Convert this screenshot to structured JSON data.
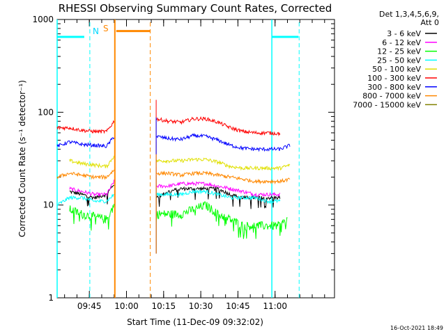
{
  "chart_data": {
    "type": "line",
    "title": "RHESSI Observing Summary Count Rates, Corrected",
    "xlabel": "Start Time (11-Dec-09 09:32:02)",
    "ylabel": "Corrected Count Rate (s⁻¹ detector⁻¹)",
    "yscale": "log",
    "ylim": [
      1,
      1000
    ],
    "xlim_minutes": [
      0,
      112
    ],
    "x_ticks": [
      {
        "label": "09:45",
        "minute": 13
      },
      {
        "label": "10:00",
        "minute": 28
      },
      {
        "label": "10:15",
        "minute": 43
      },
      {
        "label": "10:30",
        "minute": 58
      },
      {
        "label": "10:45",
        "minute": 73
      },
      {
        "label": "11:00",
        "minute": 88
      }
    ],
    "y_ticks": [
      {
        "label": "1",
        "value": 1
      },
      {
        "label": "10",
        "value": 10
      },
      {
        "label": "100",
        "value": 100
      },
      {
        "label": "1000",
        "value": 1000
      }
    ],
    "legend_header": [
      "Det 1,3,4,5,6,9,",
      "Att 0"
    ],
    "legend_position": "right",
    "footer": "16-Oct-2021 18:49",
    "gaps_minutes": [
      [
        23.3,
        39.3
      ]
    ],
    "series": [
      {
        "name": "3 - 6 keV",
        "color": "#000000",
        "seg1": [
          [
            5,
            14
          ],
          [
            10,
            13
          ],
          [
            15,
            12
          ],
          [
            20,
            13
          ],
          [
            23,
            17
          ]
        ],
        "seg2": [
          [
            40,
            12
          ],
          [
            45,
            14
          ],
          [
            50,
            15
          ],
          [
            55,
            15
          ],
          [
            60,
            15
          ],
          [
            65,
            15
          ],
          [
            70,
            13
          ],
          [
            75,
            12
          ],
          [
            80,
            12
          ],
          [
            85,
            12
          ],
          [
            90,
            12
          ]
        ]
      },
      {
        "name": "6 - 12 keV",
        "color": "#ff00ff",
        "seg1": [
          [
            5,
            15
          ],
          [
            10,
            14
          ],
          [
            15,
            13
          ],
          [
            20,
            13
          ],
          [
            23,
            18
          ]
        ],
        "seg2": [
          [
            40,
            16
          ],
          [
            45,
            16
          ],
          [
            50,
            17
          ],
          [
            55,
            17
          ],
          [
            60,
            17
          ],
          [
            65,
            16
          ],
          [
            70,
            15
          ],
          [
            75,
            14
          ],
          [
            80,
            13
          ],
          [
            85,
            13
          ],
          [
            90,
            13
          ]
        ]
      },
      {
        "name": "12 - 25 keV",
        "color": "#00ff00",
        "seg1": [
          [
            5,
            9
          ],
          [
            10,
            8
          ],
          [
            15,
            7.5
          ],
          [
            20,
            7
          ],
          [
            23,
            10
          ]
        ],
        "seg2": [
          [
            40,
            8
          ],
          [
            45,
            8
          ],
          [
            50,
            8
          ],
          [
            55,
            9
          ],
          [
            60,
            10
          ],
          [
            65,
            8
          ],
          [
            70,
            7
          ],
          [
            75,
            6
          ],
          [
            80,
            6
          ],
          [
            85,
            6
          ],
          [
            90,
            6
          ],
          [
            93,
            7
          ]
        ]
      },
      {
        "name": "25 - 50 keV",
        "color": "#00ffff",
        "seg1": [
          [
            0,
            10
          ],
          [
            5,
            12
          ],
          [
            10,
            12
          ],
          [
            15,
            11
          ],
          [
            20,
            11
          ],
          [
            23,
            13
          ]
        ],
        "seg2": [
          [
            40,
            13
          ],
          [
            45,
            13
          ],
          [
            50,
            13
          ],
          [
            55,
            14
          ],
          [
            60,
            14
          ],
          [
            65,
            13
          ],
          [
            70,
            12
          ],
          [
            75,
            12
          ],
          [
            80,
            12
          ],
          [
            85,
            11
          ],
          [
            90,
            11
          ]
        ]
      },
      {
        "name": "50 - 100 keV",
        "color": "#e0e000",
        "seg1": [
          [
            5,
            30
          ],
          [
            10,
            28
          ],
          [
            15,
            27
          ],
          [
            20,
            26
          ],
          [
            23,
            34
          ]
        ],
        "seg2": [
          [
            40,
            30
          ],
          [
            45,
            30
          ],
          [
            50,
            30
          ],
          [
            55,
            31
          ],
          [
            60,
            31
          ],
          [
            65,
            29
          ],
          [
            70,
            26
          ],
          [
            75,
            25
          ],
          [
            80,
            25
          ],
          [
            85,
            25
          ],
          [
            90,
            25
          ],
          [
            94,
            27
          ]
        ]
      },
      {
        "name": "100 - 300 keV",
        "color": "#ff0000",
        "seg1": [
          [
            0,
            68
          ],
          [
            5,
            68
          ],
          [
            10,
            64
          ],
          [
            15,
            62
          ],
          [
            20,
            62
          ],
          [
            23,
            80
          ]
        ],
        "seg2": [
          [
            40,
            85
          ],
          [
            45,
            80
          ],
          [
            50,
            78
          ],
          [
            55,
            85
          ],
          [
            60,
            85
          ],
          [
            65,
            78
          ],
          [
            70,
            68
          ],
          [
            75,
            62
          ],
          [
            80,
            60
          ],
          [
            85,
            60
          ],
          [
            90,
            59
          ]
        ]
      },
      {
        "name": "300 - 800 keV",
        "color": "#0000ff",
        "seg1": [
          [
            0,
            43
          ],
          [
            5,
            48
          ],
          [
            10,
            45
          ],
          [
            15,
            44
          ],
          [
            20,
            43
          ],
          [
            23,
            55
          ]
        ],
        "seg2": [
          [
            40,
            55
          ],
          [
            45,
            52
          ],
          [
            50,
            51
          ],
          [
            55,
            56
          ],
          [
            60,
            55
          ],
          [
            65,
            50
          ],
          [
            70,
            44
          ],
          [
            75,
            41
          ],
          [
            80,
            40
          ],
          [
            85,
            40
          ],
          [
            90,
            40
          ],
          [
            94,
            44
          ]
        ]
      },
      {
        "name": "800 - 7000 keV",
        "color": "#ff8800",
        "seg1": [
          [
            0,
            20
          ],
          [
            5,
            22
          ],
          [
            10,
            21
          ],
          [
            15,
            20
          ],
          [
            20,
            20
          ],
          [
            23,
            24
          ]
        ],
        "seg2": [
          [
            40,
            22
          ],
          [
            45,
            22
          ],
          [
            50,
            21
          ],
          [
            55,
            22
          ],
          [
            60,
            22
          ],
          [
            65,
            21
          ],
          [
            70,
            20
          ],
          [
            75,
            19
          ],
          [
            80,
            18
          ],
          [
            85,
            18
          ],
          [
            90,
            18
          ],
          [
            94,
            19
          ]
        ]
      },
      {
        "name": "7000 - 15000 keV",
        "color": "#808000",
        "seg1": [],
        "seg2": []
      }
    ],
    "annotations": {
      "n_label": "N",
      "s_label": "S",
      "n_flag_level": 650,
      "s_flag_level": 750,
      "night_intervals_minutes": [
        [
          -0.5,
          13.2
        ],
        [
          86.7,
          98
        ]
      ],
      "saa_interval_minutes": [
        23.3,
        37.6
      ]
    }
  }
}
